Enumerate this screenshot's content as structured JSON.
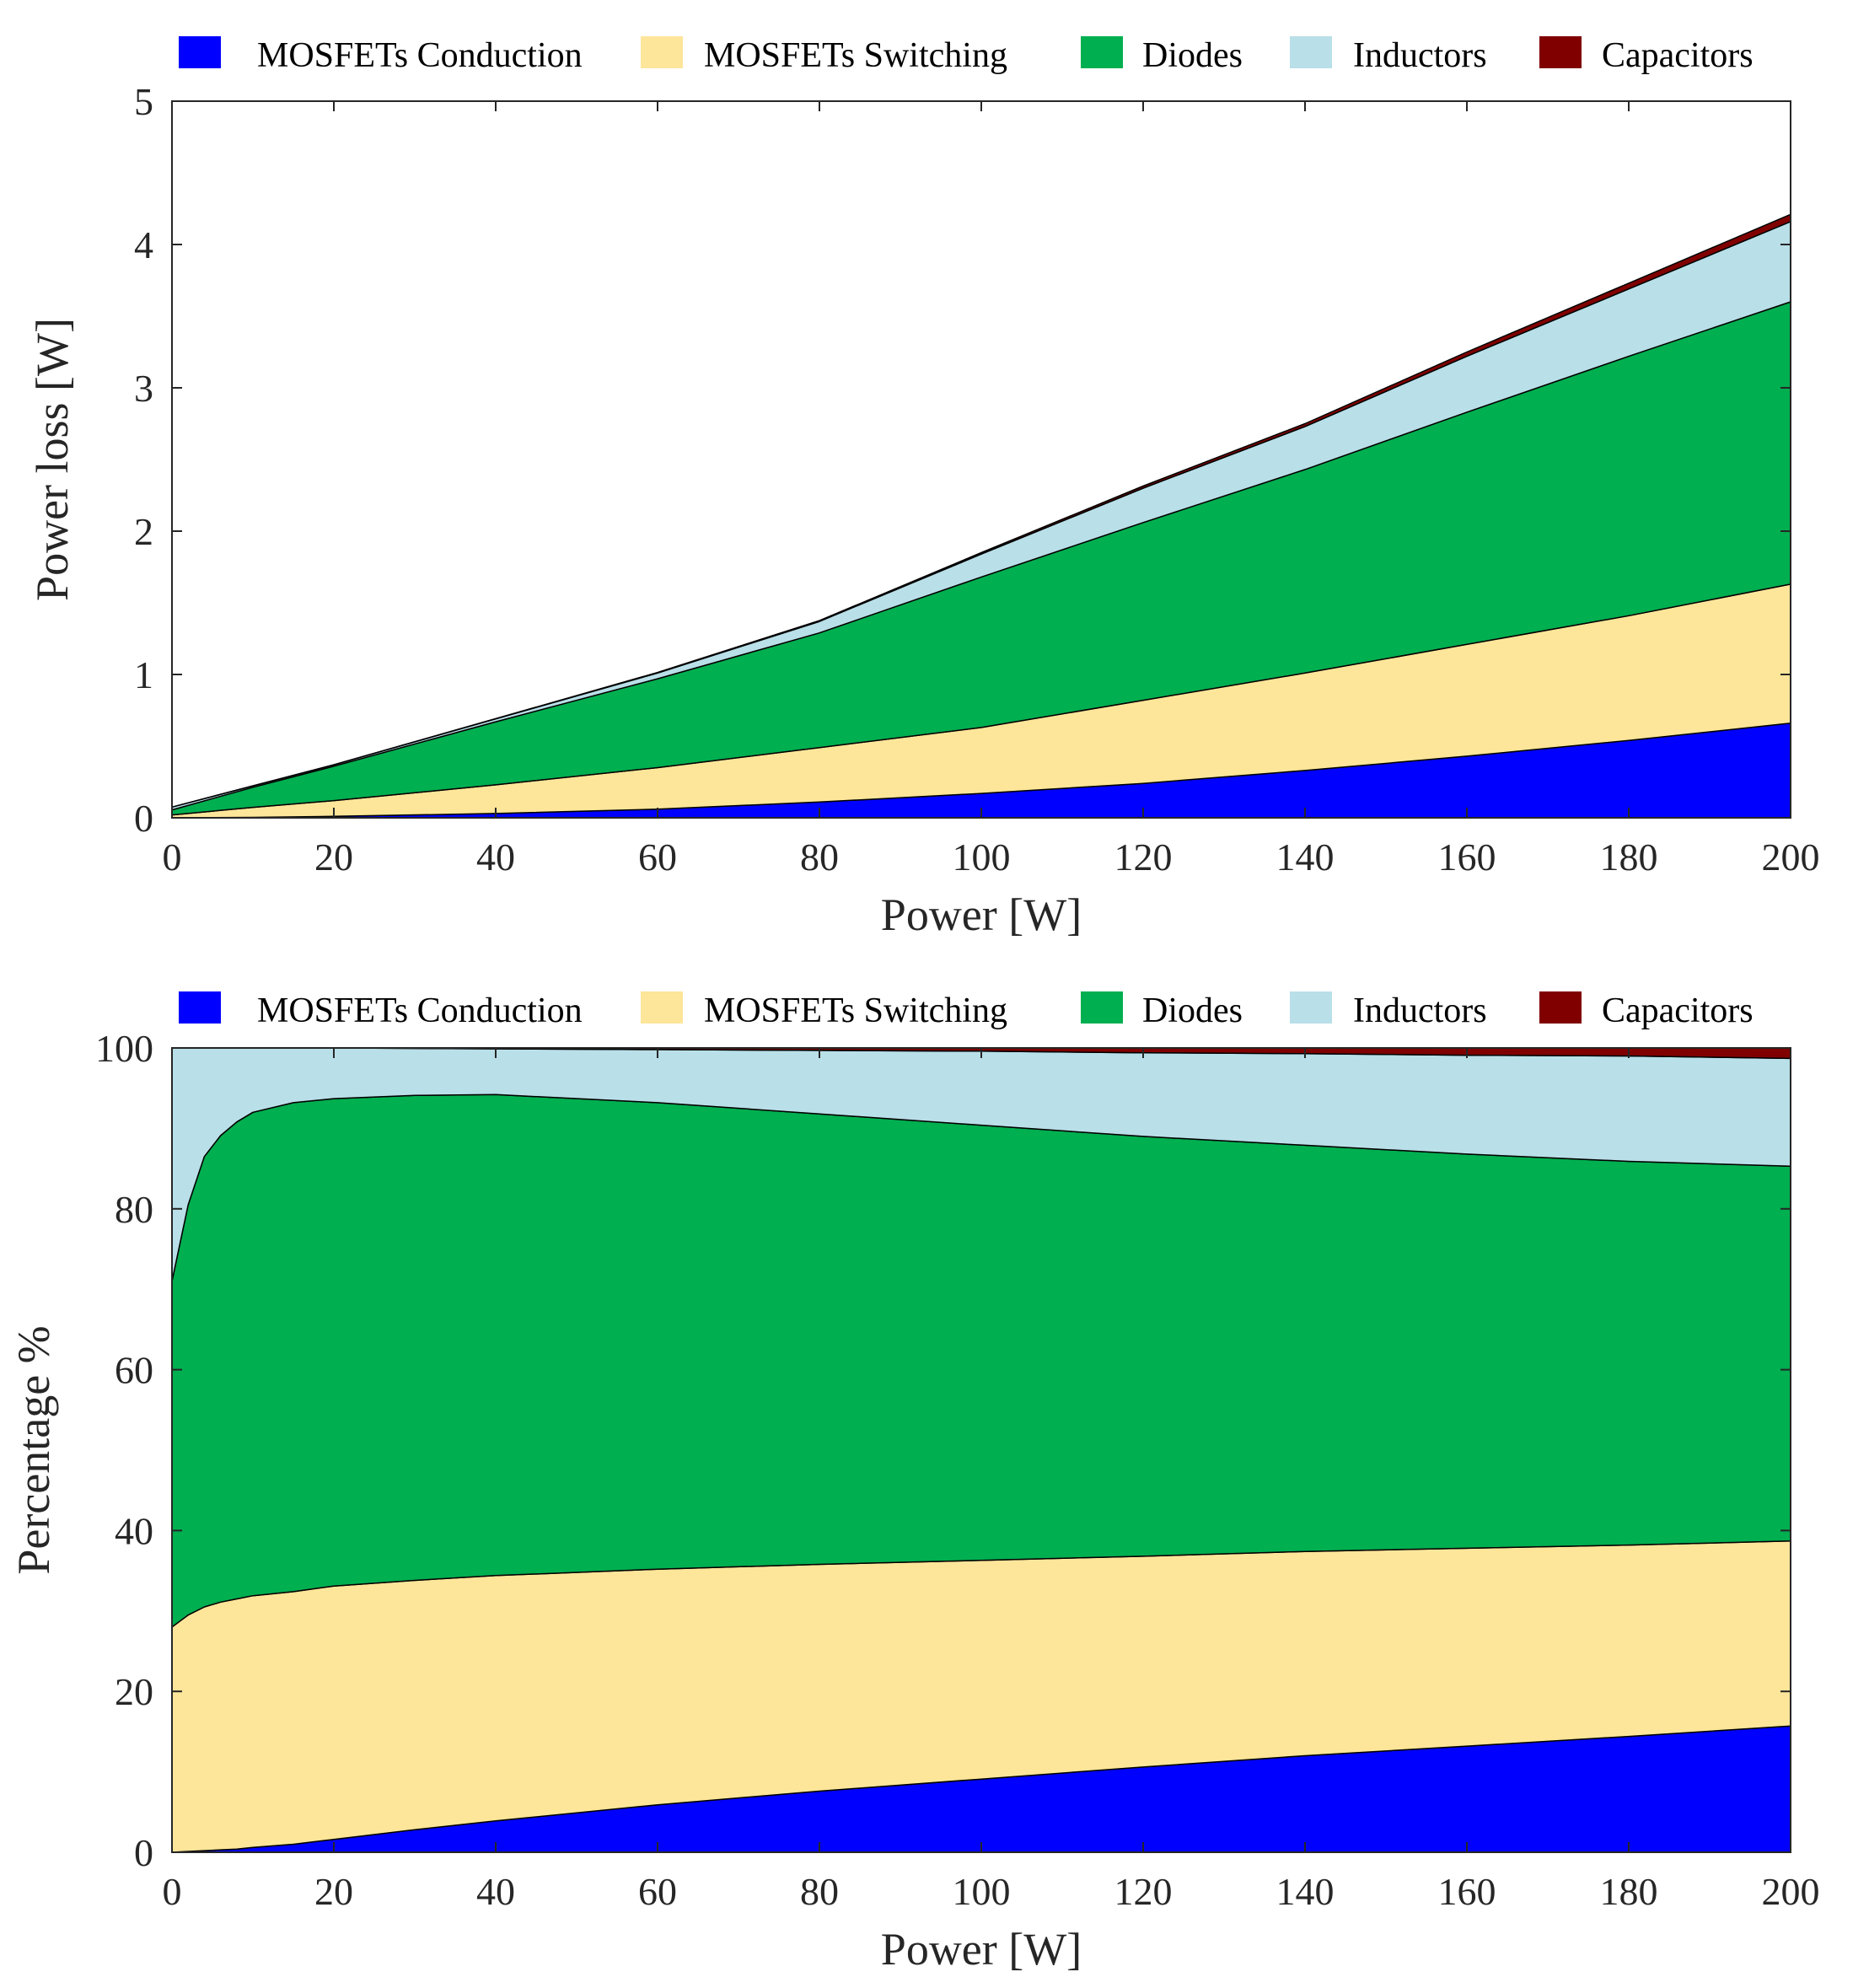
{
  "chart_data": [
    {
      "type": "area",
      "stacked": true,
      "xlabel": "Power [W]",
      "ylabel": "Power loss [W]",
      "xlim": [
        0,
        200
      ],
      "ylim": [
        0,
        5
      ],
      "xticks": [
        "0",
        "20",
        "40",
        "60",
        "80",
        "100",
        "120",
        "140",
        "160",
        "180",
        "200"
      ],
      "yticks": [
        "0",
        "1",
        "2",
        "3",
        "4",
        "5"
      ],
      "legend": {
        "placement": "top",
        "entries": [
          "MOSFETs Conduction",
          "MOSFETs Switching",
          "Diodes",
          "Inductors",
          "Capacitors"
        ]
      },
      "x": [
        0,
        10,
        20,
        40,
        60,
        80,
        100,
        120,
        140,
        160,
        180,
        200
      ],
      "series": [
        {
          "name": "MOSFETs Conduction",
          "color": "#0000ff",
          "values": [
            0.0,
            0.003,
            0.01,
            0.03,
            0.06,
            0.11,
            0.17,
            0.24,
            0.33,
            0.43,
            0.54,
            0.66
          ]
        },
        {
          "name": "MOSFETs Switching",
          "color": "#fde59a",
          "values": [
            0.02,
            0.07,
            0.11,
            0.2,
            0.29,
            0.38,
            0.46,
            0.58,
            0.68,
            0.78,
            0.87,
            0.97
          ]
        },
        {
          "name": "Diodes",
          "color": "#00af50",
          "values": [
            0.035,
            0.14,
            0.24,
            0.44,
            0.62,
            0.8,
            1.05,
            1.24,
            1.42,
            1.62,
            1.81,
            1.97
          ]
        },
        {
          "name": "Inductors",
          "color": "#b9dfe8",
          "values": [
            0.02,
            0.01,
            0.01,
            0.02,
            0.04,
            0.08,
            0.16,
            0.24,
            0.3,
            0.39,
            0.47,
            0.56
          ]
        },
        {
          "name": "Capacitors",
          "color": "#800000",
          "values": [
            0.0,
            0.0,
            0.0,
            0.002,
            0.004,
            0.006,
            0.01,
            0.015,
            0.02,
            0.03,
            0.04,
            0.05
          ]
        }
      ]
    },
    {
      "type": "area",
      "stacked": true,
      "xlabel": "Power [W]",
      "ylabel": "Percentage %",
      "xlim": [
        0,
        200
      ],
      "ylim": [
        0,
        100
      ],
      "xticks": [
        "0",
        "20",
        "40",
        "60",
        "80",
        "100",
        "120",
        "140",
        "160",
        "180",
        "200"
      ],
      "yticks": [
        "0",
        "20",
        "40",
        "60",
        "80",
        "100"
      ],
      "legend": {
        "placement": "top",
        "entries": [
          "MOSFETs Conduction",
          "MOSFETs Switching",
          "Diodes",
          "Inductors",
          "Capacitors"
        ]
      },
      "x": [
        0,
        1,
        2,
        4,
        6,
        8,
        10,
        15,
        20,
        30,
        40,
        60,
        80,
        100,
        120,
        140,
        160,
        180,
        200
      ],
      "series": [
        {
          "name": "MOSFETs Conduction",
          "color": "#0000ff",
          "values": [
            0,
            0.05,
            0.1,
            0.2,
            0.3,
            0.4,
            0.6,
            1.0,
            1.6,
            2.8,
            3.9,
            5.9,
            7.6,
            9.1,
            10.6,
            12.0,
            13.2,
            14.4,
            15.7
          ]
        },
        {
          "name": "MOSFETs Switching",
          "color": "#fde59a",
          "values": [
            28,
            28.7,
            29.4,
            30.3,
            30.8,
            31.1,
            31.3,
            31.4,
            31.5,
            31.0,
            30.5,
            29.3,
            28.2,
            27.2,
            26.2,
            25.4,
            24.6,
            23.8,
            23.0
          ]
        },
        {
          "name": "Diodes",
          "color": "#00af50",
          "values": [
            43,
            47,
            51,
            56,
            58,
            59.3,
            60.1,
            60.8,
            60.6,
            60.3,
            59.8,
            58.0,
            56.0,
            54.1,
            52.2,
            50.5,
            49.0,
            47.7,
            46.6
          ]
        },
        {
          "name": "Inductors",
          "color": "#b9dfe8",
          "values": [
            29,
            24.25,
            19.5,
            13.5,
            10.9,
            9.2,
            8.0,
            6.8,
            6.3,
            5.85,
            5.7,
            6.6,
            7.9,
            9.2,
            10.4,
            11.4,
            12.3,
            13.1,
            13.4
          ]
        },
        {
          "name": "Capacitors",
          "color": "#800000",
          "values": [
            0,
            0,
            0,
            0,
            0,
            0,
            0,
            0,
            0,
            0.05,
            0.1,
            0.2,
            0.3,
            0.4,
            0.6,
            0.7,
            0.9,
            1.0,
            1.3
          ]
        }
      ]
    }
  ]
}
